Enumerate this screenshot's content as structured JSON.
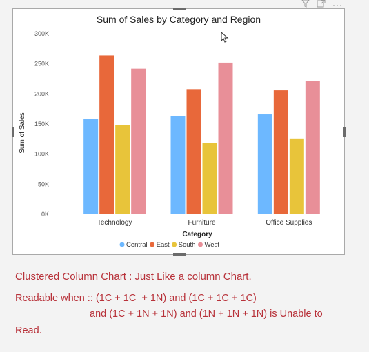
{
  "toolbar": {
    "icons": [
      "filter-icon",
      "focus-mode-icon",
      "more-options-icon"
    ],
    "more_label": "···"
  },
  "chart_data": {
    "type": "bar",
    "title": "Sum of Sales by Category and Region",
    "xlabel": "Category",
    "ylabel": "Sum of Sales",
    "categories": [
      "Technology",
      "Furniture",
      "Office Supplies"
    ],
    "series": [
      {
        "name": "Central",
        "color": "#6db8ff",
        "values": [
          158000,
          163000,
          166000
        ]
      },
      {
        "name": "East",
        "color": "#e8683a",
        "values": [
          264000,
          208000,
          206000
        ]
      },
      {
        "name": "South",
        "color": "#e8c43a",
        "values": [
          148000,
          118000,
          125000
        ]
      },
      {
        "name": "West",
        "color": "#e88f98",
        "values": [
          242000,
          252000,
          221000
        ]
      }
    ],
    "ylim": [
      0,
      300000
    ],
    "yticks": [
      0,
      50000,
      100000,
      150000,
      200000,
      250000,
      300000
    ],
    "ytick_labels": [
      "0K",
      "50K",
      "100K",
      "150K",
      "200K",
      "250K",
      "300K"
    ],
    "legend_position": "bottom",
    "grid": false
  },
  "notes": {
    "title": "Clustered Column Chart : Just Like a column Chart.",
    "line1": "Readable when :: (1C + 1C  + 1N) and (1C + 1C + 1C)",
    "line2": "and (1C + 1N + 1N) and (1N + 1N + 1N) is Unable to",
    "line3": "Read."
  }
}
